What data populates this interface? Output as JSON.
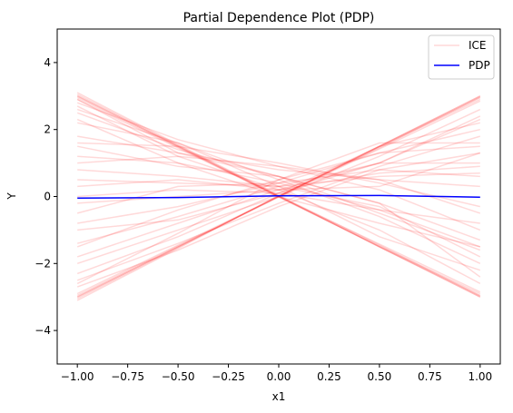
{
  "chart_data": {
    "type": "line",
    "title": "Partial Dependence Plot (PDP)",
    "xlabel": "x1",
    "ylabel": "Y",
    "xlim": [
      -1.1,
      1.1
    ],
    "ylim": [
      -5,
      5
    ],
    "x_ticks": [
      -1.0,
      -0.75,
      -0.5,
      -0.25,
      0.0,
      0.25,
      0.5,
      0.75,
      1.0
    ],
    "x_tick_labels": [
      "−1.00",
      "−0.75",
      "−0.50",
      "−0.25",
      "0.00",
      "0.25",
      "0.50",
      "0.75",
      "1.00"
    ],
    "y_ticks": [
      -4,
      -2,
      0,
      2,
      4
    ],
    "y_tick_labels": [
      "−4",
      "−2",
      "0",
      "2",
      "4"
    ],
    "grid": false,
    "legend": {
      "placement": "top-right"
    },
    "x": [
      -1.0,
      -0.5,
      0.0,
      0.5,
      1.0
    ],
    "series": [
      {
        "name": "ICE",
        "color": "#ff0000",
        "opacity": 0.15,
        "lines": [
          [
            3.0,
            1.5,
            0.0,
            -1.5,
            -3.0
          ],
          [
            3.05,
            1.52,
            0.02,
            -1.5,
            -2.95
          ],
          [
            2.95,
            1.48,
            -0.02,
            -1.48,
            -2.9
          ],
          [
            3.1,
            1.55,
            0.03,
            -1.45,
            -2.97
          ],
          [
            2.9,
            1.45,
            0.0,
            -1.42,
            -2.85
          ],
          [
            3.0,
            1.5,
            0.0,
            -1.5,
            -3.0
          ],
          [
            -3.0,
            -1.5,
            0.0,
            1.5,
            3.0
          ],
          [
            -3.05,
            -1.52,
            0.02,
            1.5,
            2.95
          ],
          [
            -2.95,
            -1.48,
            -0.02,
            1.48,
            2.9
          ],
          [
            -3.1,
            -1.55,
            0.03,
            1.45,
            2.97
          ],
          [
            -2.9,
            -1.45,
            0.0,
            1.42,
            2.85
          ],
          [
            -3.0,
            -1.5,
            0.0,
            1.5,
            3.0
          ],
          [
            2.8,
            1.7,
            0.9,
            0.2,
            -1.0
          ],
          [
            2.5,
            1.4,
            0.6,
            -0.5,
            -1.6
          ],
          [
            1.8,
            1.3,
            0.8,
            0.5,
            0.3
          ],
          [
            1.6,
            1.5,
            1.0,
            0.4,
            -0.3
          ],
          [
            2.2,
            1.6,
            0.5,
            -0.6,
            -2.0
          ],
          [
            1.0,
            1.2,
            0.9,
            0.5,
            -0.5
          ],
          [
            0.8,
            0.6,
            0.3,
            0.6,
            0.7
          ],
          [
            0.3,
            0.5,
            0.2,
            0.3,
            1.3
          ],
          [
            -0.5,
            0.3,
            0.4,
            0.8,
            1.3
          ],
          [
            -0.8,
            -0.3,
            0.4,
            1.3,
            1.5
          ],
          [
            -1.4,
            -0.6,
            0.3,
            1.0,
            1.0
          ],
          [
            -1.5,
            -0.4,
            0.5,
            1.3,
            2.0
          ],
          [
            -2.0,
            -1.0,
            0.0,
            1.2,
            2.6
          ],
          [
            -2.3,
            -1.2,
            0.1,
            1.5,
            2.2
          ],
          [
            -2.5,
            -1.4,
            -0.2,
            0.9,
            1.8
          ],
          [
            -2.7,
            -1.6,
            -0.3,
            0.8,
            0.6
          ],
          [
            2.7,
            1.2,
            0.2,
            -1.0,
            -2.6
          ],
          [
            2.6,
            1.6,
            0.3,
            -1.2,
            -2.2
          ],
          [
            1.5,
            0.9,
            0.6,
            -0.2,
            -1.3
          ],
          [
            1.2,
            1.0,
            0.4,
            -0.4,
            -1.5
          ],
          [
            0.5,
            0.4,
            0.3,
            -0.3,
            -1.8
          ],
          [
            0.0,
            0.2,
            0.1,
            -0.4,
            -0.8
          ],
          [
            -0.2,
            0.0,
            0.2,
            1.0,
            2.3
          ],
          [
            -1.0,
            -0.7,
            0.1,
            1.0,
            2.4
          ],
          [
            -2.6,
            -1.1,
            0.5,
            1.6,
            1.6
          ],
          [
            2.3,
            1.0,
            0.0,
            -0.8,
            -1.5
          ],
          [
            -1.8,
            -0.8,
            0.2,
            0.7,
            0.9
          ],
          [
            2.9,
            1.3,
            0.6,
            -0.2,
            -2.4
          ]
        ]
      },
      {
        "name": "PDP",
        "color": "#0000ff",
        "values": [
          -0.05,
          -0.03,
          0.02,
          0.03,
          -0.02
        ]
      }
    ]
  }
}
